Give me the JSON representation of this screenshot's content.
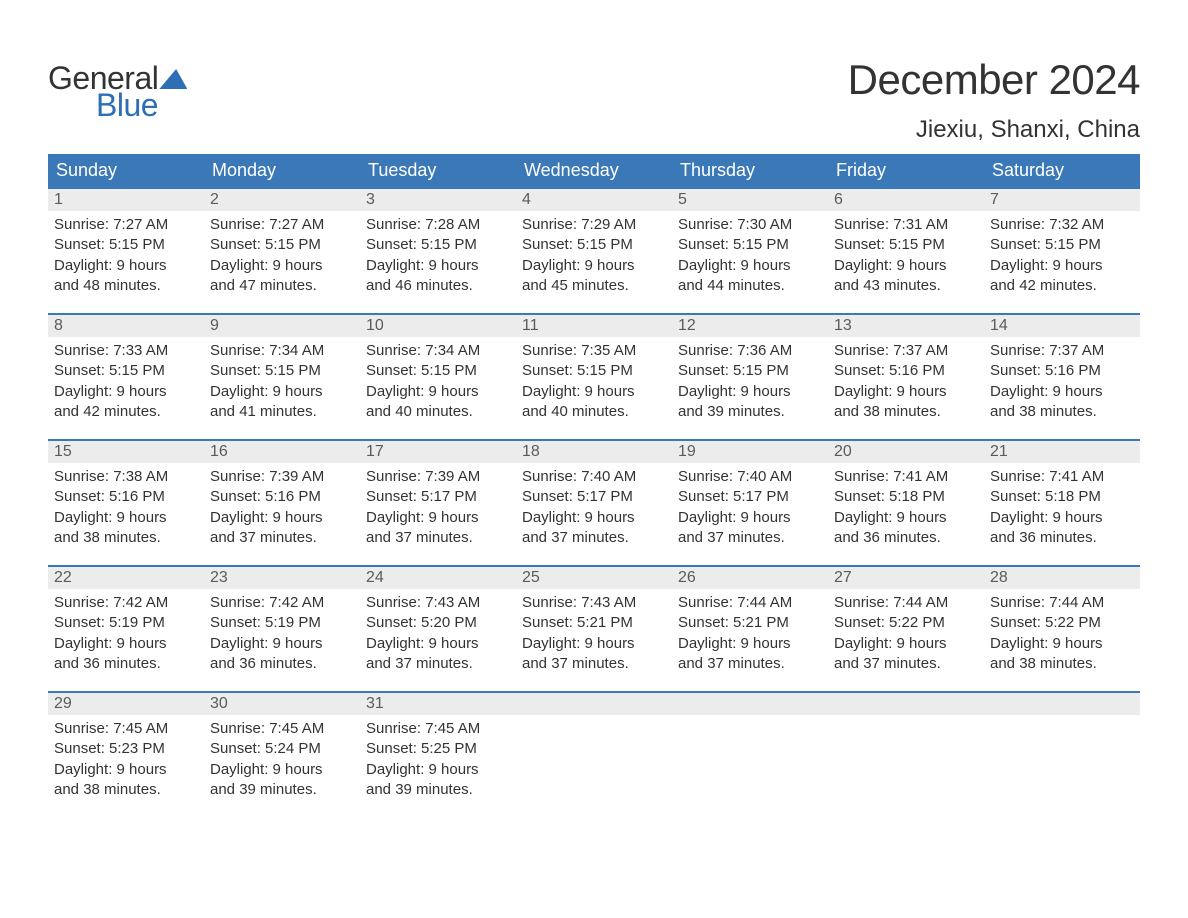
{
  "logo": {
    "text1": "General",
    "text2": "Blue"
  },
  "title": "December 2024",
  "location": "Jiexiu, Shanxi, China",
  "colors": {
    "header_blue": "#3b78b8",
    "logo_blue": "#2d6eb5",
    "daynum_bg": "#ececec",
    "text": "#333333",
    "border": "#3b78b8"
  },
  "weekdays": [
    "Sunday",
    "Monday",
    "Tuesday",
    "Wednesday",
    "Thursday",
    "Friday",
    "Saturday"
  ],
  "weeks": [
    [
      {
        "n": "1",
        "sunrise": "Sunrise: 7:27 AM",
        "sunset": "Sunset: 5:15 PM",
        "d1": "Daylight: 9 hours",
        "d2": "and 48 minutes."
      },
      {
        "n": "2",
        "sunrise": "Sunrise: 7:27 AM",
        "sunset": "Sunset: 5:15 PM",
        "d1": "Daylight: 9 hours",
        "d2": "and 47 minutes."
      },
      {
        "n": "3",
        "sunrise": "Sunrise: 7:28 AM",
        "sunset": "Sunset: 5:15 PM",
        "d1": "Daylight: 9 hours",
        "d2": "and 46 minutes."
      },
      {
        "n": "4",
        "sunrise": "Sunrise: 7:29 AM",
        "sunset": "Sunset: 5:15 PM",
        "d1": "Daylight: 9 hours",
        "d2": "and 45 minutes."
      },
      {
        "n": "5",
        "sunrise": "Sunrise: 7:30 AM",
        "sunset": "Sunset: 5:15 PM",
        "d1": "Daylight: 9 hours",
        "d2": "and 44 minutes."
      },
      {
        "n": "6",
        "sunrise": "Sunrise: 7:31 AM",
        "sunset": "Sunset: 5:15 PM",
        "d1": "Daylight: 9 hours",
        "d2": "and 43 minutes."
      },
      {
        "n": "7",
        "sunrise": "Sunrise: 7:32 AM",
        "sunset": "Sunset: 5:15 PM",
        "d1": "Daylight: 9 hours",
        "d2": "and 42 minutes."
      }
    ],
    [
      {
        "n": "8",
        "sunrise": "Sunrise: 7:33 AM",
        "sunset": "Sunset: 5:15 PM",
        "d1": "Daylight: 9 hours",
        "d2": "and 42 minutes."
      },
      {
        "n": "9",
        "sunrise": "Sunrise: 7:34 AM",
        "sunset": "Sunset: 5:15 PM",
        "d1": "Daylight: 9 hours",
        "d2": "and 41 minutes."
      },
      {
        "n": "10",
        "sunrise": "Sunrise: 7:34 AM",
        "sunset": "Sunset: 5:15 PM",
        "d1": "Daylight: 9 hours",
        "d2": "and 40 minutes."
      },
      {
        "n": "11",
        "sunrise": "Sunrise: 7:35 AM",
        "sunset": "Sunset: 5:15 PM",
        "d1": "Daylight: 9 hours",
        "d2": "and 40 minutes."
      },
      {
        "n": "12",
        "sunrise": "Sunrise: 7:36 AM",
        "sunset": "Sunset: 5:15 PM",
        "d1": "Daylight: 9 hours",
        "d2": "and 39 minutes."
      },
      {
        "n": "13",
        "sunrise": "Sunrise: 7:37 AM",
        "sunset": "Sunset: 5:16 PM",
        "d1": "Daylight: 9 hours",
        "d2": "and 38 minutes."
      },
      {
        "n": "14",
        "sunrise": "Sunrise: 7:37 AM",
        "sunset": "Sunset: 5:16 PM",
        "d1": "Daylight: 9 hours",
        "d2": "and 38 minutes."
      }
    ],
    [
      {
        "n": "15",
        "sunrise": "Sunrise: 7:38 AM",
        "sunset": "Sunset: 5:16 PM",
        "d1": "Daylight: 9 hours",
        "d2": "and 38 minutes."
      },
      {
        "n": "16",
        "sunrise": "Sunrise: 7:39 AM",
        "sunset": "Sunset: 5:16 PM",
        "d1": "Daylight: 9 hours",
        "d2": "and 37 minutes."
      },
      {
        "n": "17",
        "sunrise": "Sunrise: 7:39 AM",
        "sunset": "Sunset: 5:17 PM",
        "d1": "Daylight: 9 hours",
        "d2": "and 37 minutes."
      },
      {
        "n": "18",
        "sunrise": "Sunrise: 7:40 AM",
        "sunset": "Sunset: 5:17 PM",
        "d1": "Daylight: 9 hours",
        "d2": "and 37 minutes."
      },
      {
        "n": "19",
        "sunrise": "Sunrise: 7:40 AM",
        "sunset": "Sunset: 5:17 PM",
        "d1": "Daylight: 9 hours",
        "d2": "and 37 minutes."
      },
      {
        "n": "20",
        "sunrise": "Sunrise: 7:41 AM",
        "sunset": "Sunset: 5:18 PM",
        "d1": "Daylight: 9 hours",
        "d2": "and 36 minutes."
      },
      {
        "n": "21",
        "sunrise": "Sunrise: 7:41 AM",
        "sunset": "Sunset: 5:18 PM",
        "d1": "Daylight: 9 hours",
        "d2": "and 36 minutes."
      }
    ],
    [
      {
        "n": "22",
        "sunrise": "Sunrise: 7:42 AM",
        "sunset": "Sunset: 5:19 PM",
        "d1": "Daylight: 9 hours",
        "d2": "and 36 minutes."
      },
      {
        "n": "23",
        "sunrise": "Sunrise: 7:42 AM",
        "sunset": "Sunset: 5:19 PM",
        "d1": "Daylight: 9 hours",
        "d2": "and 36 minutes."
      },
      {
        "n": "24",
        "sunrise": "Sunrise: 7:43 AM",
        "sunset": "Sunset: 5:20 PM",
        "d1": "Daylight: 9 hours",
        "d2": "and 37 minutes."
      },
      {
        "n": "25",
        "sunrise": "Sunrise: 7:43 AM",
        "sunset": "Sunset: 5:21 PM",
        "d1": "Daylight: 9 hours",
        "d2": "and 37 minutes."
      },
      {
        "n": "26",
        "sunrise": "Sunrise: 7:44 AM",
        "sunset": "Sunset: 5:21 PM",
        "d1": "Daylight: 9 hours",
        "d2": "and 37 minutes."
      },
      {
        "n": "27",
        "sunrise": "Sunrise: 7:44 AM",
        "sunset": "Sunset: 5:22 PM",
        "d1": "Daylight: 9 hours",
        "d2": "and 37 minutes."
      },
      {
        "n": "28",
        "sunrise": "Sunrise: 7:44 AM",
        "sunset": "Sunset: 5:22 PM",
        "d1": "Daylight: 9 hours",
        "d2": "and 38 minutes."
      }
    ],
    [
      {
        "n": "29",
        "sunrise": "Sunrise: 7:45 AM",
        "sunset": "Sunset: 5:23 PM",
        "d1": "Daylight: 9 hours",
        "d2": "and 38 minutes."
      },
      {
        "n": "30",
        "sunrise": "Sunrise: 7:45 AM",
        "sunset": "Sunset: 5:24 PM",
        "d1": "Daylight: 9 hours",
        "d2": "and 39 minutes."
      },
      {
        "n": "31",
        "sunrise": "Sunrise: 7:45 AM",
        "sunset": "Sunset: 5:25 PM",
        "d1": "Daylight: 9 hours",
        "d2": "and 39 minutes."
      },
      null,
      null,
      null,
      null
    ]
  ]
}
